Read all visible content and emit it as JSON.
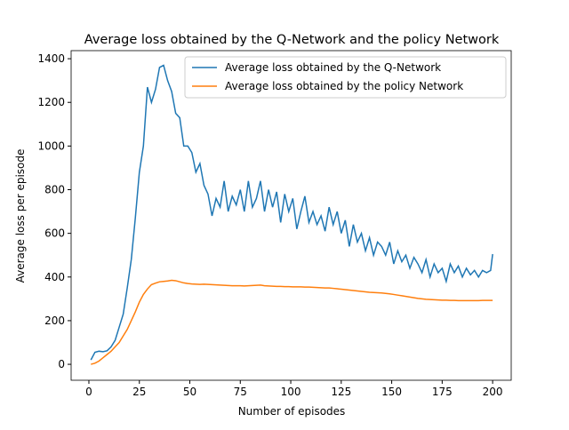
{
  "chart_data": {
    "type": "line",
    "title": "Average loss obtained by the Q-Network and the policy Network",
    "xlabel": "Number of episodes",
    "ylabel": "Average loss per episode",
    "x": [
      1,
      3,
      5,
      7,
      9,
      11,
      13,
      15,
      17,
      19,
      21,
      23,
      25,
      27,
      29,
      31,
      33,
      35,
      37,
      39,
      41,
      43,
      45,
      47,
      49,
      51,
      53,
      55,
      57,
      59,
      61,
      63,
      65,
      67,
      69,
      71,
      73,
      75,
      77,
      79,
      81,
      83,
      85,
      87,
      89,
      91,
      93,
      95,
      97,
      99,
      101,
      103,
      105,
      107,
      109,
      111,
      113,
      115,
      117,
      119,
      121,
      123,
      125,
      127,
      129,
      131,
      133,
      135,
      137,
      139,
      141,
      143,
      145,
      147,
      149,
      151,
      153,
      155,
      157,
      159,
      161,
      163,
      165,
      167,
      169,
      171,
      173,
      175,
      177,
      179,
      181,
      183,
      185,
      187,
      189,
      191,
      193,
      195,
      197,
      199,
      200
    ],
    "series": [
      {
        "name": "Average loss obtained by the Q-Network",
        "color": "#1f77b4",
        "values": [
          20,
          55,
          60,
          58,
          62,
          80,
          110,
          170,
          230,
          350,
          480,
          670,
          880,
          1000,
          1270,
          1200,
          1260,
          1360,
          1370,
          1300,
          1250,
          1150,
          1130,
          1000,
          1000,
          970,
          880,
          920,
          820,
          780,
          680,
          760,
          720,
          840,
          700,
          770,
          730,
          800,
          700,
          840,
          720,
          760,
          840,
          700,
          800,
          720,
          790,
          650,
          780,
          700,
          760,
          620,
          700,
          770,
          650,
          700,
          640,
          680,
          610,
          720,
          640,
          700,
          600,
          660,
          540,
          640,
          560,
          600,
          520,
          580,
          500,
          560,
          540,
          500,
          560,
          460,
          520,
          470,
          500,
          440,
          490,
          460,
          420,
          480,
          400,
          460,
          420,
          440,
          380,
          460,
          420,
          450,
          400,
          440,
          410,
          430,
          400,
          430,
          420,
          430,
          505
        ]
      },
      {
        "name": "Average loss obtained by the policy Network",
        "color": "#ff7f0e",
        "values": [
          0,
          5,
          15,
          30,
          45,
          60,
          80,
          100,
          130,
          160,
          200,
          240,
          285,
          320,
          345,
          365,
          372,
          378,
          380,
          382,
          385,
          383,
          378,
          373,
          370,
          368,
          367,
          366,
          367,
          366,
          365,
          364,
          363,
          362,
          361,
          360,
          360,
          360,
          359,
          360,
          361,
          362,
          363,
          360,
          359,
          358,
          357,
          357,
          356,
          356,
          355,
          355,
          355,
          354,
          354,
          353,
          352,
          351,
          350,
          350,
          348,
          346,
          344,
          342,
          340,
          338,
          336,
          334,
          332,
          330,
          329,
          328,
          327,
          325,
          323,
          320,
          317,
          314,
          311,
          308,
          305,
          302,
          300,
          298,
          297,
          296,
          295,
          294,
          294,
          293,
          293,
          292,
          292,
          292,
          292,
          292,
          292,
          293,
          293,
          293,
          293
        ]
      }
    ],
    "xlim": [
      -8.8,
      209.2
    ],
    "ylim": [
      -73,
      1437
    ],
    "xticks": [
      0,
      25,
      50,
      75,
      100,
      125,
      150,
      175,
      200
    ],
    "yticks": [
      0,
      200,
      400,
      600,
      800,
      1000,
      1200,
      1400
    ],
    "legend": "upper right"
  }
}
